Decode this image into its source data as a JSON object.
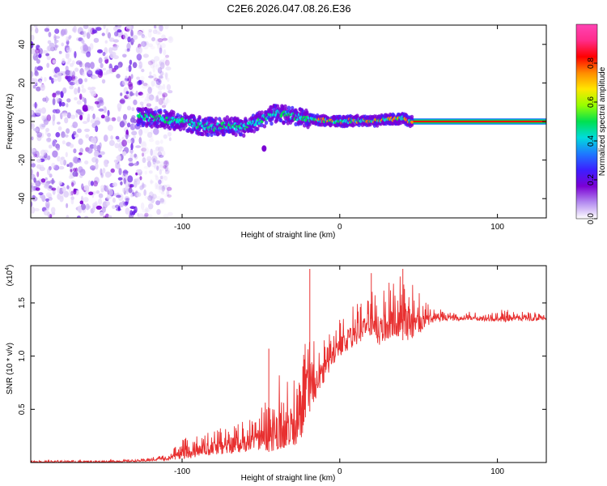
{
  "title": "C2E6.2026.047.08.26.E36",
  "colors": {
    "snr_line": "#e83030",
    "frame": "#000000",
    "colormap": [
      "#ffffff",
      "#b48cf0",
      "#7b00d4",
      "#3c1eff",
      "#1e78ff",
      "#00dcdc",
      "#00e050",
      "#96ff00",
      "#ffe600",
      "#ff8c00",
      "#ff0000",
      "#ff2c8a",
      "#ff44b4"
    ]
  },
  "chart_data": [
    {
      "type": "heatmap",
      "title": "",
      "xlabel": "Height of straight line (km)",
      "ylabel": "Frequency (Hz)",
      "xlim": [
        -196,
        131
      ],
      "ylim": [
        -50,
        50
      ],
      "xticks": [
        -100,
        0,
        100
      ],
      "xtick_labels": [
        "-100",
        "0",
        "100"
      ],
      "yticks": [
        -40,
        -20,
        0,
        20,
        40
      ],
      "ytick_labels": [
        "-40",
        "-20",
        "0",
        "20",
        "40"
      ],
      "colorbar": {
        "label": "Normalized spectral amplitude",
        "range": [
          0,
          1
        ],
        "ticks": [
          0.0,
          0.2,
          0.4,
          0.6,
          0.8
        ],
        "tick_labels": [
          "0.0",
          "0.2",
          "0.4",
          "0.6",
          "0.8"
        ]
      },
      "noise_region_x": [
        -196,
        -115
      ],
      "ridge": {
        "x": [
          -130,
          -120,
          -110,
          -100,
          -90,
          -80,
          -70,
          -60,
          -50,
          -45,
          -40,
          -30,
          -20,
          -10,
          0,
          10,
          20,
          30,
          40,
          45,
          60,
          80,
          100,
          120,
          131
        ],
        "frequency_hz": [
          3,
          2,
          1,
          0,
          -2,
          -3,
          -2,
          -3,
          1,
          3,
          4,
          3,
          1,
          0.5,
          0,
          0.5,
          0,
          1,
          1.5,
          0,
          0,
          0,
          0,
          0,
          0
        ]
      }
    },
    {
      "type": "line",
      "title": "",
      "xlabel": "Height of straight line (km)",
      "ylabel": "SNR (10 * v/v)",
      "y_scale_label": "(x10",
      "y_scale_exponent": "4",
      "xlim": [
        -196,
        131
      ],
      "ylim": [
        0,
        1.85
      ],
      "xticks": [
        -100,
        0,
        100
      ],
      "xtick_labels": [
        "-100",
        "0",
        "100"
      ],
      "yticks": [
        0.5,
        1.0,
        1.5
      ],
      "ytick_labels": [
        "0.5",
        "1.0",
        "1.5"
      ],
      "series": [
        {
          "name": "SNR",
          "envelope_x": [
            -196,
            -150,
            -125,
            -110,
            -100,
            -90,
            -80,
            -60,
            -50,
            -45,
            -40,
            -30,
            -25,
            -20,
            -15,
            -10,
            -5,
            0,
            10,
            20,
            25,
            30,
            35,
            40,
            45,
            50,
            55,
            60,
            70,
            80,
            90,
            100,
            105,
            110,
            120,
            131
          ],
          "envelope_low": [
            0.0,
            0.0,
            0.01,
            0.02,
            0.03,
            0.05,
            0.07,
            0.1,
            0.12,
            0.1,
            0.12,
            0.15,
            0.2,
            0.45,
            0.6,
            0.75,
            0.9,
            1.0,
            1.1,
            1.2,
            1.1,
            1.15,
            1.2,
            1.15,
            1.15,
            1.2,
            1.28,
            1.32,
            1.33,
            1.34,
            1.33,
            1.33,
            1.32,
            1.33,
            1.33,
            1.34
          ],
          "envelope_high": [
            0.02,
            0.02,
            0.03,
            0.08,
            0.22,
            0.28,
            0.3,
            0.4,
            0.55,
            0.62,
            0.8,
            0.95,
            0.75,
            1.55,
            1.0,
            1.2,
            1.28,
            1.35,
            1.5,
            1.65,
            1.6,
            1.7,
            1.8,
            1.82,
            1.75,
            1.6,
            1.5,
            1.45,
            1.43,
            1.42,
            1.42,
            1.42,
            1.45,
            1.42,
            1.42,
            1.42
          ],
          "spikes": [
            {
              "x": -45,
              "y": 1.07
            },
            {
              "x": -19,
              "y": 1.82
            },
            {
              "x": 40,
              "y": 1.82
            },
            {
              "x": 20,
              "y": 1.78
            }
          ]
        }
      ]
    }
  ]
}
